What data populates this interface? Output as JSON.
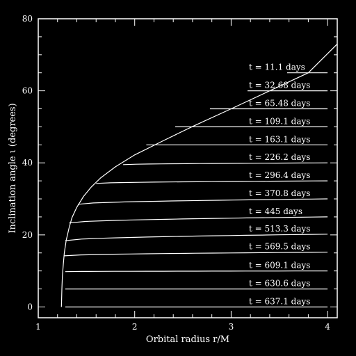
{
  "chart_data": {
    "type": "line",
    "title": "",
    "xlabel": "Orbital radius r/M",
    "ylabel": "Inclination angle ι (degrees)",
    "xlim": [
      1,
      4.1
    ],
    "ylim": [
      -3,
      80
    ],
    "xticks": [
      1,
      2,
      3,
      4
    ],
    "yticks": [
      0,
      20,
      40,
      60,
      80
    ],
    "grid": false,
    "colors": {
      "background": "#000000",
      "foreground": "#ffffff"
    },
    "envelope": {
      "x": [
        1.24,
        1.245,
        1.25,
        1.26,
        1.27,
        1.29,
        1.32,
        1.35,
        1.4,
        1.47,
        1.55,
        1.65,
        1.8,
        2.0,
        2.3,
        2.6,
        3.0,
        3.4,
        3.8,
        4.1
      ],
      "y": [
        0,
        5,
        8.5,
        12,
        15,
        18.5,
        22,
        24.8,
        27.7,
        30.7,
        33.3,
        35.9,
        38.9,
        42.2,
        46.2,
        50.1,
        55.0,
        60.0,
        65.0,
        73.0
      ]
    },
    "series": [
      {
        "label": "t = 11.1 days",
        "r_start": 3.58,
        "y_start": 65.0,
        "y_end": 65.0
      },
      {
        "label": "t = 32.68 days",
        "r_start": 3.17,
        "y_start": 60.0,
        "y_end": 60.0
      },
      {
        "label": "t = 65.48 days",
        "r_start": 2.78,
        "y_start": 55.0,
        "y_end": 55.0
      },
      {
        "label": "t = 109.1 days",
        "r_start": 2.42,
        "y_start": 50.0,
        "y_end": 50.0
      },
      {
        "label": "t = 163.1 days",
        "r_start": 2.12,
        "y_start": 45.0,
        "y_end": 45.0
      },
      {
        "label": "t = 226.2 days",
        "r_start": 1.88,
        "y_start": 39.5,
        "y_end": 40.0
      },
      {
        "label": "t = 296.4 days",
        "r_start": 1.6,
        "y_start": 34.3,
        "y_end": 35.0
      },
      {
        "label": "t = 370.8 days",
        "r_start": 1.41,
        "y_start": 28.5,
        "y_end": 30.0
      },
      {
        "label": "t = 445 days",
        "r_start": 1.32,
        "y_start": 23.3,
        "y_end": 25.0
      },
      {
        "label": "t = 513.3 days",
        "r_start": 1.28,
        "y_start": 18.4,
        "y_end": 20.2
      },
      {
        "label": "t = 569.5 days",
        "r_start": 1.27,
        "y_start": 14.2,
        "y_end": 15.2
      },
      {
        "label": "t = 609.1 days",
        "r_start": 1.28,
        "y_start": 9.8,
        "y_end": 10.0
      },
      {
        "label": "t = 630.6 days",
        "r_start": 1.28,
        "y_start": 5.0,
        "y_end": 5.0
      },
      {
        "label": "t = 637.1 days",
        "r_start": 1.28,
        "y_start": 0.0,
        "y_end": 0.0
      }
    ]
  }
}
